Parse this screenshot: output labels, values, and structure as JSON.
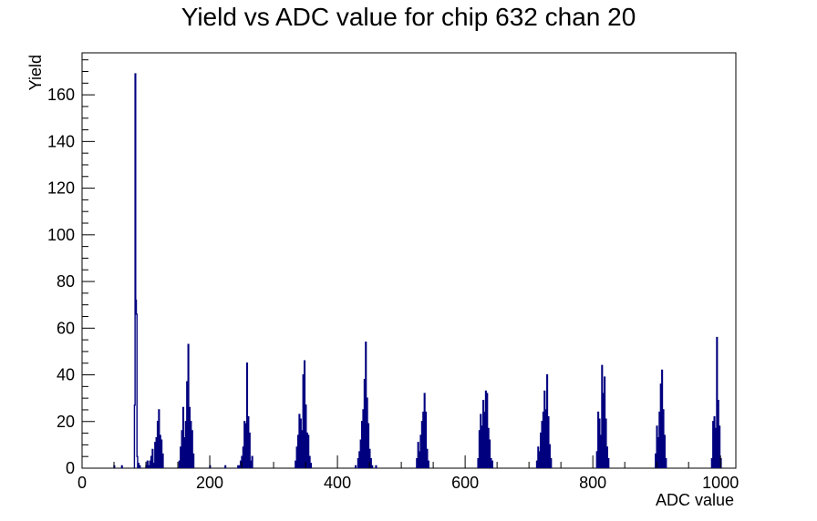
{
  "chart_data": {
    "type": "bar",
    "title": "Yield vs ADC value for chip 632 chan 20",
    "xlabel": "ADC value",
    "ylabel": "Yield",
    "xlim": [
      0,
      1024
    ],
    "ylim": [
      0,
      178
    ],
    "x_ticks": [
      0,
      200,
      400,
      600,
      800,
      1000
    ],
    "y_ticks": [
      0,
      20,
      40,
      60,
      80,
      100,
      120,
      140,
      160
    ],
    "grid": false,
    "legend": "none",
    "histogram_color": "#00007f",
    "series": [
      {
        "peaks": [
          {
            "x": [
              50,
              62,
              82,
              83,
              84,
              85,
              86,
              88,
              90,
              100,
              102,
              104,
              106
            ],
            "y": [
              1,
              1,
              27,
              169,
              72,
              66,
              5,
              2,
              1,
              1,
              3,
              1,
              3
            ]
          },
          {
            "x": [
              108,
              110,
              112,
              114,
              116,
              118,
              120,
              122,
              124,
              126
            ],
            "y": [
              5,
              8,
              2,
              11,
              13,
              20,
              25,
              14,
              12,
              6
            ]
          },
          {
            "x": [
              152,
              154,
              156,
              158,
              160,
              162,
              164,
              166,
              168,
              170,
              172,
              174
            ],
            "y": [
              3,
              9,
              16,
              26,
              13,
              20,
              37,
              53,
              26,
              20,
              16,
              6
            ]
          },
          {
            "x": [
              200,
              224,
              244,
              246,
              248,
              250,
              252,
              254,
              256,
              258,
              260,
              262,
              264,
              266
            ],
            "y": [
              1,
              1,
              1,
              1,
              3,
              5,
              9,
              20,
              19,
              45,
              22,
              15,
              3,
              5
            ]
          },
          {
            "x": [
              334,
              336,
              338,
              340,
              342,
              344,
              346,
              348,
              350,
              352,
              354,
              356,
              358
            ],
            "y": [
              3,
              9,
              14,
              23,
              21,
              16,
              40,
              46,
              27,
              15,
              14,
              5,
              2
            ]
          },
          {
            "x": [
              428,
              432,
              434,
              436,
              438,
              440,
              442,
              444,
              446,
              448,
              450,
              452,
              454,
              460
            ],
            "y": [
              1,
              4,
              7,
              12,
              20,
              25,
              38,
              54,
              30,
              19,
              8,
              4,
              1,
              1
            ]
          },
          {
            "x": [
              524,
              526,
              528,
              530,
              532,
              534,
              536,
              538,
              540,
              542
            ],
            "y": [
              4,
              11,
              7,
              14,
              20,
              24,
              32,
              24,
              8,
              3
            ]
          },
          {
            "x": [
              620,
              622,
              624,
              626,
              628,
              630,
              632,
              634,
              636,
              638,
              640,
              642
            ],
            "y": [
              4,
              16,
              23,
              18,
              29,
              24,
              33,
              32,
              17,
              12,
              4,
              3
            ]
          },
          {
            "x": [
              712,
              714,
              716,
              718,
              720,
              722,
              724,
              726,
              728,
              730,
              732,
              734
            ],
            "y": [
              3,
              9,
              7,
              15,
              20,
              24,
              33,
              25,
              40,
              22,
              10,
              4
            ]
          },
          {
            "x": [
              806,
              808,
              810,
              812,
              814,
              816,
              818,
              820,
              822,
              824
            ],
            "y": [
              7,
              24,
              21,
              14,
              44,
              32,
              39,
              21,
              9,
              4
            ]
          },
          {
            "x": [
              898,
              900,
              902,
              904,
              906,
              908,
              910,
              912,
              914
            ],
            "y": [
              6,
              18,
              13,
              24,
              36,
              42,
              25,
              14,
              4
            ]
          },
          {
            "x": [
              986,
              988,
              990,
              992,
              994,
              996,
              998,
              1000
            ],
            "y": [
              4,
              20,
              22,
              17,
              56,
              29,
              18,
              4
            ]
          }
        ]
      }
    ]
  }
}
